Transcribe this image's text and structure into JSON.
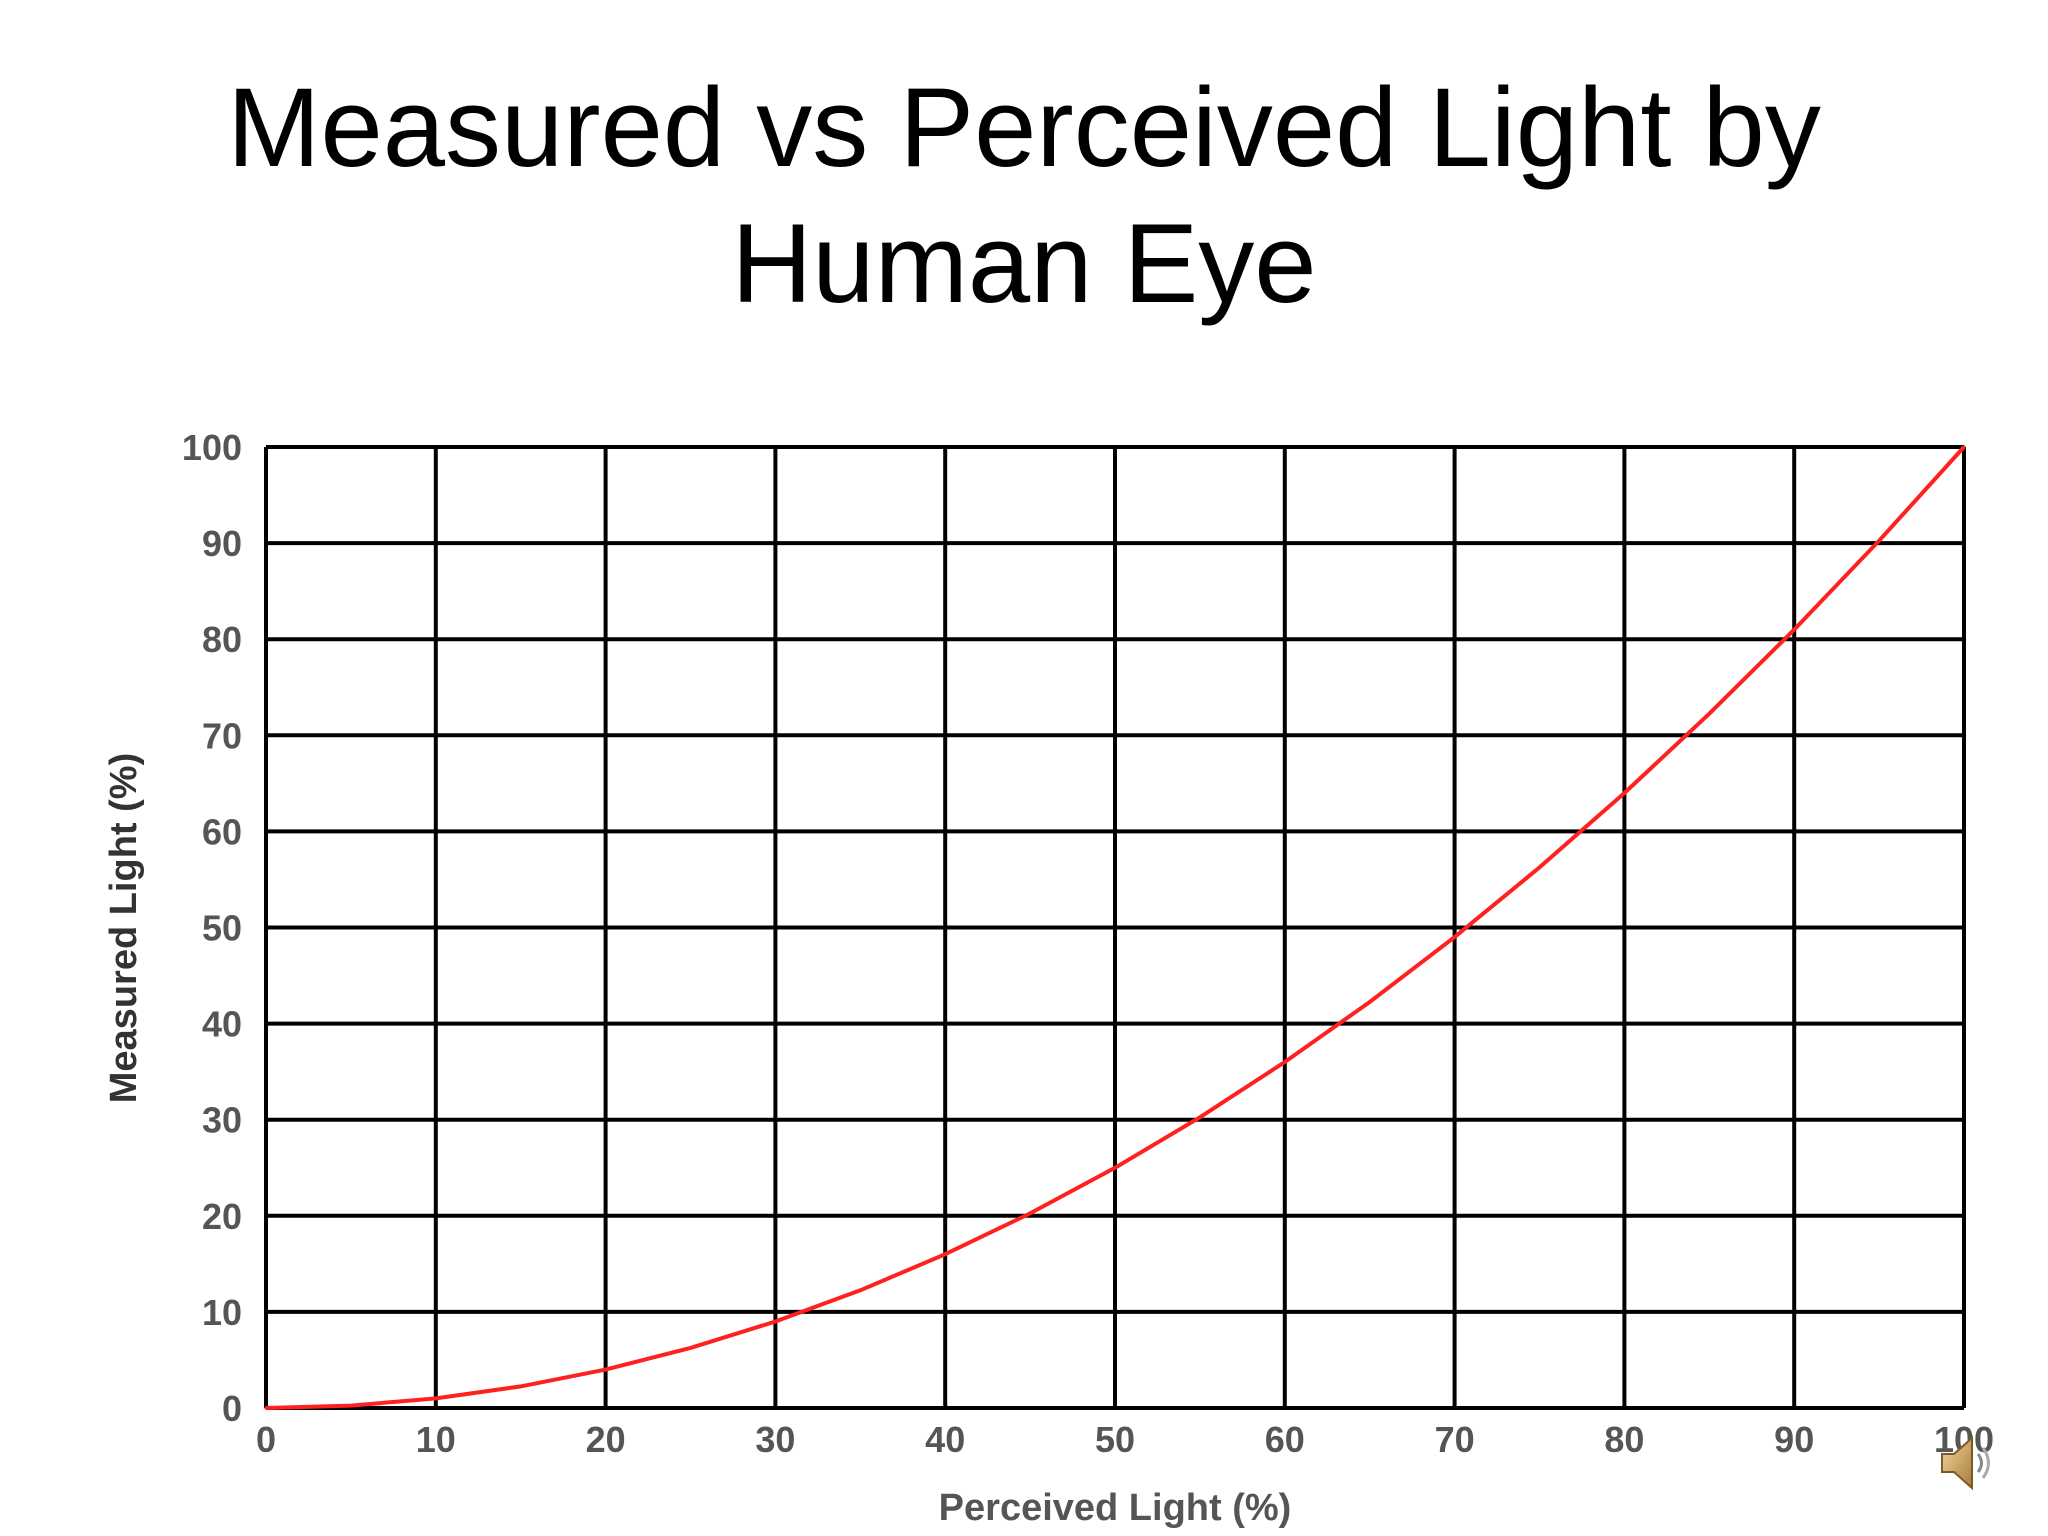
{
  "slide": {
    "title_line1": "Measured vs Perceived Light by",
    "title_line2": "Human Eye"
  },
  "chart_data": {
    "type": "line",
    "title": "Measured vs Perceived Light by Human Eye",
    "xlabel": "Perceived Light (%)",
    "ylabel": "Measured Light (%)",
    "xlim": [
      0,
      100
    ],
    "ylim": [
      0,
      100
    ],
    "xticks": [
      0,
      10,
      20,
      30,
      40,
      50,
      60,
      70,
      80,
      90,
      100
    ],
    "yticks": [
      0,
      10,
      20,
      30,
      40,
      50,
      60,
      70,
      80,
      90,
      100
    ],
    "grid": true,
    "series": [
      {
        "color": "#ff2020",
        "x": [
          0,
          5,
          10,
          15,
          20,
          25,
          30,
          35,
          40,
          45,
          50,
          55,
          60,
          65,
          70,
          75,
          80,
          85,
          90,
          95,
          100
        ],
        "y": [
          0,
          0.25,
          1,
          2.25,
          4,
          6.25,
          9,
          12.25,
          16,
          20.25,
          25,
          30.25,
          36,
          42.25,
          49,
          56.25,
          64,
          72.25,
          81,
          90.25,
          100
        ]
      }
    ]
  },
  "speaker": {
    "icon": "speaker-icon"
  }
}
